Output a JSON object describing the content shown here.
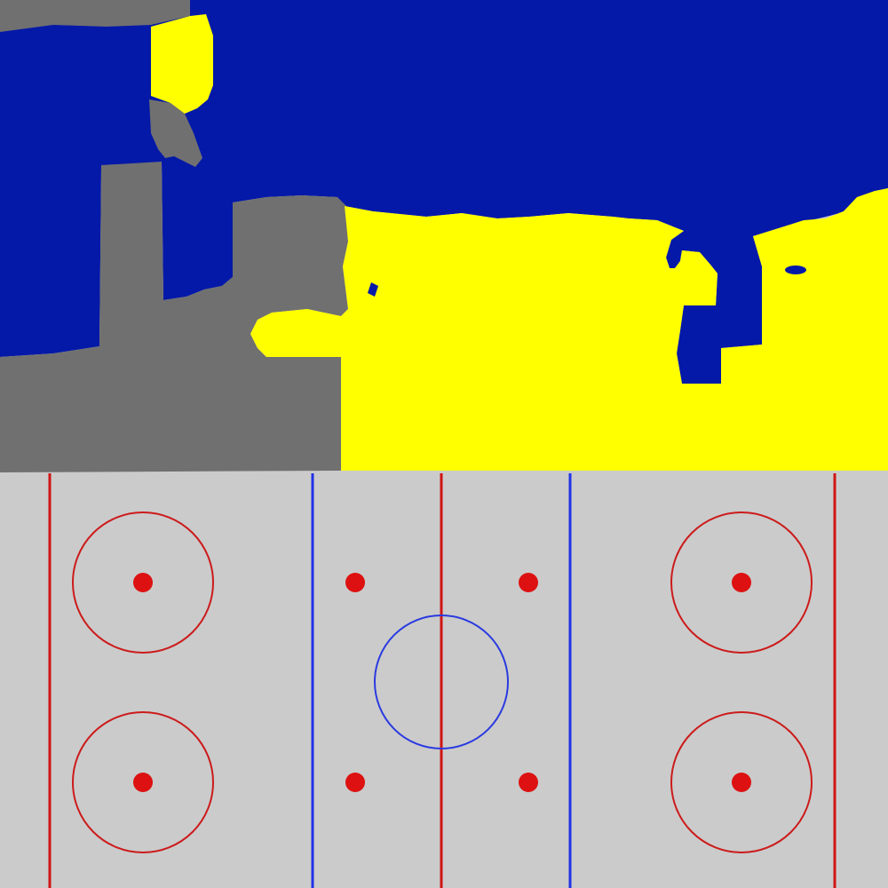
{
  "colors": {
    "background": "#cbcbcb",
    "team_blue": "#0419a8",
    "team_yellow": "#ffff00",
    "team_gray": "#707070",
    "rink_ice": "#cbcbcb",
    "red_line": "#d11414",
    "blue_line": "#2233e6",
    "center_circle": "#2a3ae0",
    "faceoff_circle": "#cc1b1b",
    "faceoff_dot": "#dd1111"
  },
  "territory": {
    "regions": [
      {
        "name": "blue-territory",
        "color_key": "team_blue"
      },
      {
        "name": "gray-territory",
        "color_key": "team_gray"
      },
      {
        "name": "yellow-territory",
        "color_key": "team_yellow"
      }
    ]
  },
  "rink": {
    "elements": [
      "goal-line-left",
      "blue-line-left",
      "center-red-line",
      "blue-line-right",
      "goal-line-right",
      "center-faceoff-circle",
      "faceoff-circles-end-zones",
      "faceoff-dots"
    ]
  }
}
